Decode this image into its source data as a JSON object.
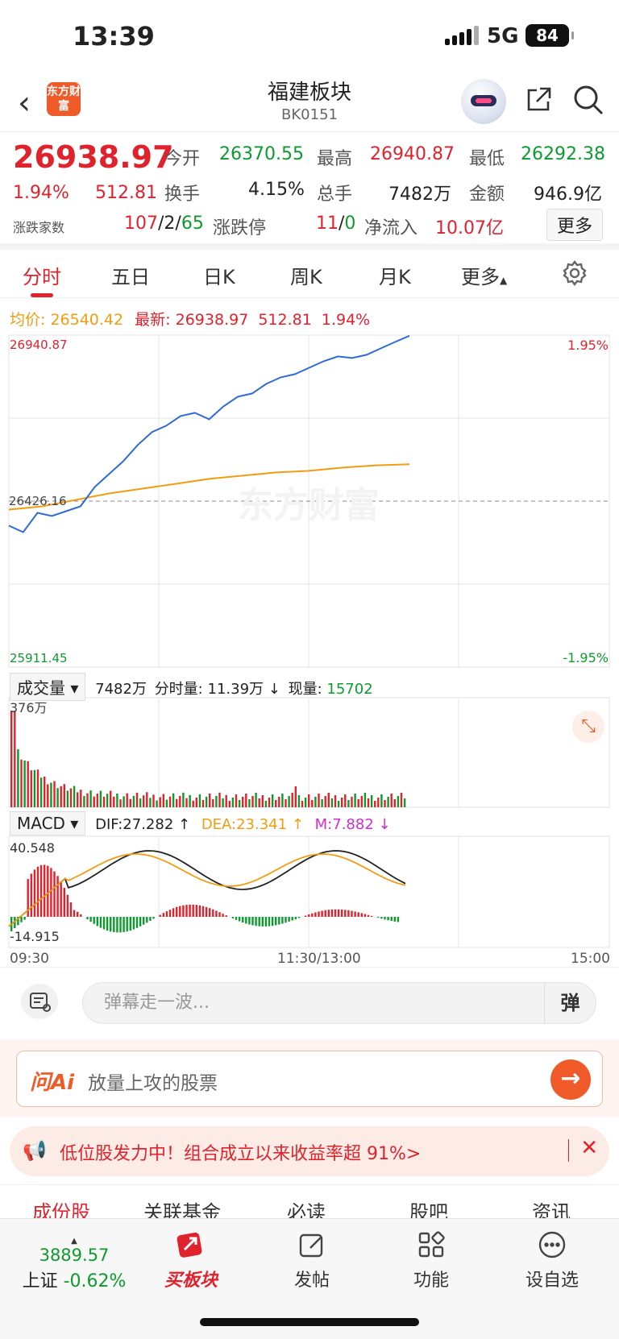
{
  "status": {
    "time": "13:39",
    "network": "5G",
    "battery": "84"
  },
  "header": {
    "logo_text": "东方财富",
    "title": "福建板块",
    "code": "BK0151"
  },
  "quote": {
    "price": "26938.97",
    "pct": "1.94%",
    "change": "512.81",
    "labels": {
      "open": "今开",
      "high": "最高",
      "low": "最低",
      "turnover": "换手",
      "volume": "总手",
      "amount": "金额",
      "updown_count": "涨跌家数",
      "limit": "涨跌停",
      "inflow": "净流入"
    },
    "open": "26370.55",
    "high": "26940.87",
    "low": "26292.38",
    "turnover": "4.15%",
    "volume": "7482万",
    "amount": "946.9亿",
    "up": "107",
    "flat": "2",
    "down": "65",
    "limit_up": "11",
    "limit_down": "0",
    "inflow": "10.07亿",
    "more": "更多"
  },
  "tabs": [
    "分时",
    "五日",
    "日K",
    "周K",
    "月K",
    "更多"
  ],
  "info_line": {
    "avg_label": "均价:",
    "avg": "26540.42",
    "latest_label": "最新:",
    "latest": "26938.97",
    "change": "512.81",
    "pct": "1.94%"
  },
  "axis": {
    "top": "26940.87",
    "mid": "26426.16",
    "bottom": "25911.45",
    "top_pct": "1.95%",
    "bottom_pct": "-1.95%",
    "watermark": "东方财富"
  },
  "volume": {
    "select": "成交量",
    "total": "7482万",
    "minute_label": "分时量:",
    "minute": "11.39万",
    "now_label": "现量:",
    "now": "15702",
    "max": "376万"
  },
  "macd": {
    "select": "MACD",
    "dif": "DIF:27.282",
    "dea": "DEA:23.341",
    "m": "M:7.882",
    "max": "40.548",
    "min": "-14.915"
  },
  "times": [
    "09:30",
    "11:30/13:00",
    "15:00"
  ],
  "danmu": {
    "placeholder": "弹幕走一波...",
    "btn": "弹"
  },
  "ai": {
    "logo": "问Ai",
    "text": "放量上攻的股票"
  },
  "promo": {
    "text": "低位股发力中！组合成立以来收益率超 91%>"
  },
  "subtabs": [
    "成份股",
    "关联基金",
    "必读",
    "股吧",
    "资讯"
  ],
  "bottom": {
    "index_value": "3889.57",
    "index_name": "上证",
    "index_pct": "-0.62%",
    "nav": [
      "买板块",
      "发帖",
      "功能",
      "设自选"
    ]
  },
  "colors": {
    "red": "#e0222d",
    "green": "#0d9b2e",
    "price_line": "#2f6bd8",
    "avg_line": "#f39c12",
    "brand": "#f05a28"
  },
  "chart_data": [
    {
      "type": "line",
      "title": "",
      "series": [
        {
          "values": [
            26350,
            26330,
            26390,
            26380,
            26395,
            26410,
            26470,
            26510,
            26550,
            26600,
            26640,
            26660,
            26690,
            26700,
            26680,
            26720,
            26750,
            26760,
            26790,
            26810,
            26820,
            26840,
            26860,
            26875,
            26870,
            26880,
            26900,
            26920,
            26938.97
          ]
        },
        {
          "values": [
            26400,
            26410,
            26430,
            26450,
            26465,
            26480,
            26495,
            26505,
            26515,
            26520,
            26530,
            26537,
            26540.42
          ]
        }
      ],
      "ylim": [
        25911.45,
        26940.87
      ]
    },
    {
      "type": "bar",
      "title": "",
      "ylim": [
        0,
        3760000
      ]
    }
  ]
}
